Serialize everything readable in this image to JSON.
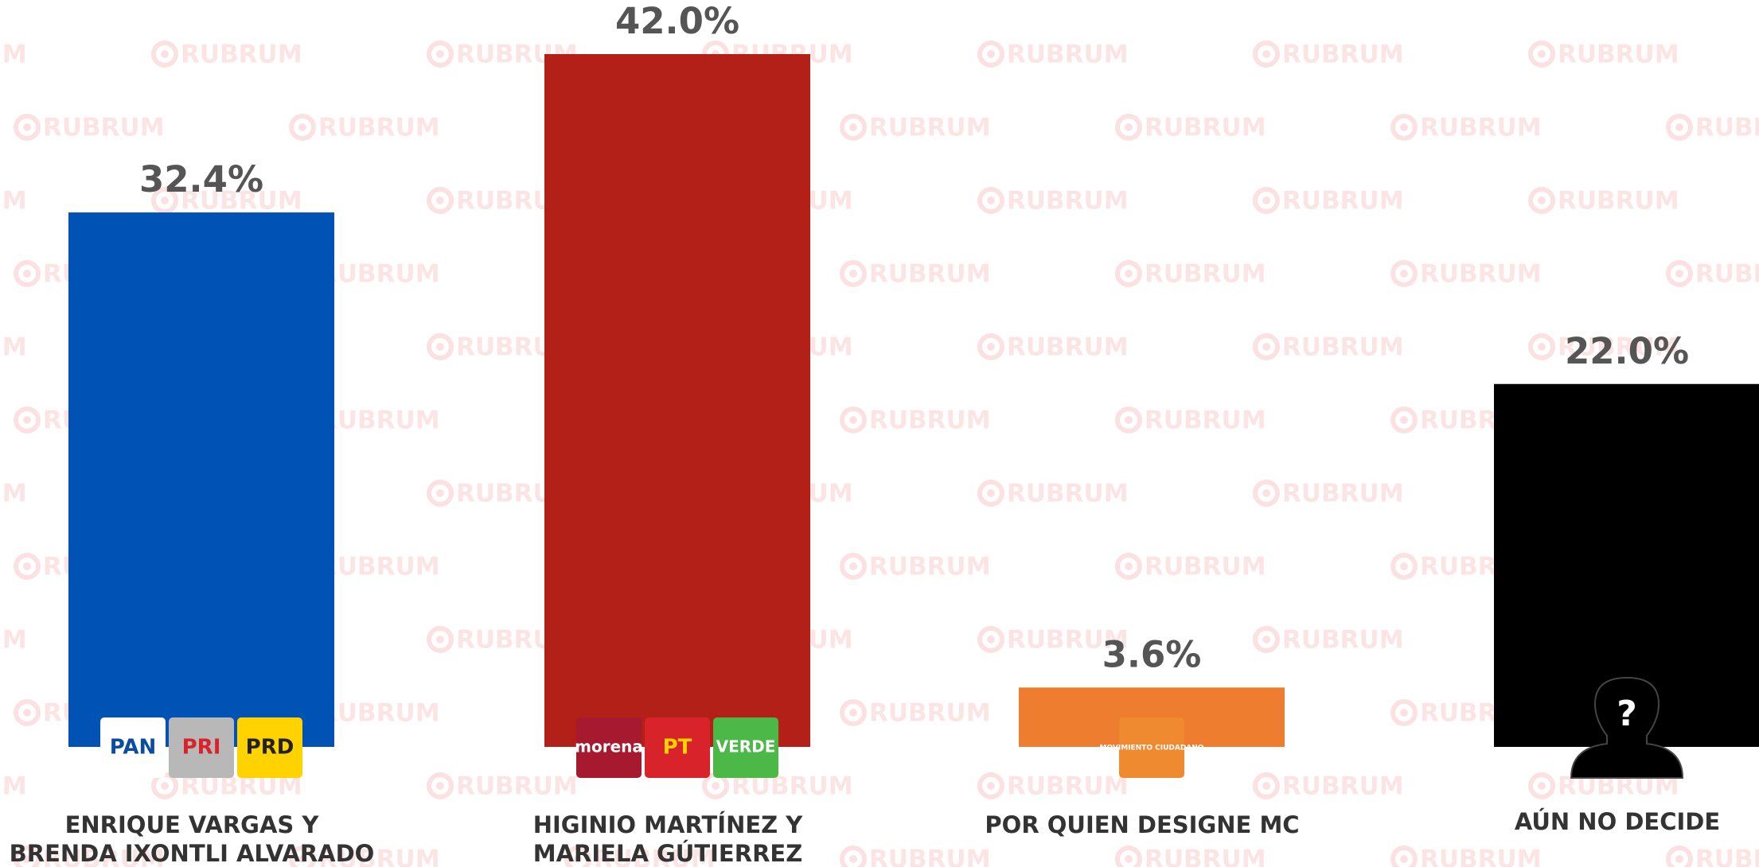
{
  "chart_data": {
    "type": "bar",
    "watermark": "RUBRUM",
    "categories": [
      [
        "ENRIQUE VARGAS Y",
        "BRENDA IXONTLI ALVARADO"
      ],
      [
        "HIGINIO MARTÍNEZ Y",
        "MARIELA GÚTIERREZ"
      ],
      [
        "POR QUIEN DESIGNE MC"
      ],
      [
        "AÚN NO DECIDE"
      ]
    ],
    "values": [
      32.4,
      42.0,
      3.6,
      22.0
    ],
    "value_labels": [
      "32.4%",
      "42.0%",
      "3.6%",
      "22.0%"
    ],
    "colors": [
      "#0052b4",
      "#b32018",
      "#ee7d30",
      "#000000"
    ],
    "logos": [
      [
        "PAN",
        "PRI",
        "PRD"
      ],
      [
        "morena",
        "PT",
        "VERDE"
      ],
      [
        "MOVIMIENTO CIUDADANO"
      ],
      [
        "?"
      ]
    ],
    "ylim": [
      0,
      42
    ]
  }
}
